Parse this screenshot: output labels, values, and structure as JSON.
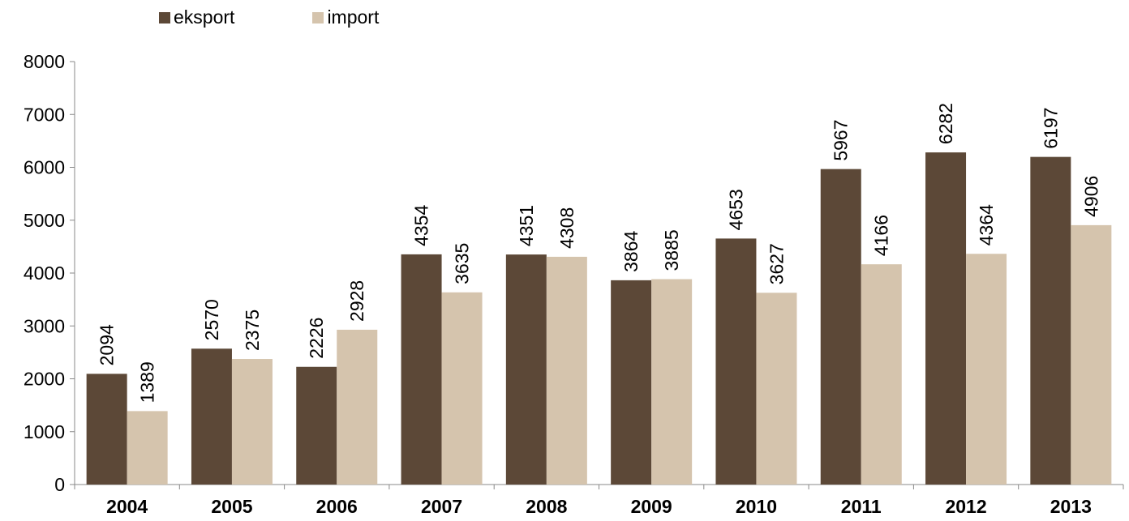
{
  "chart_data": {
    "type": "bar",
    "categories": [
      "2004",
      "2005",
      "2006",
      "2007",
      "2008",
      "2009",
      "2010",
      "2011",
      "2012",
      "2013"
    ],
    "series": [
      {
        "name": "eksport",
        "color": "#5c4837",
        "values": [
          2094,
          2570,
          2226,
          4354,
          4351,
          3864,
          4653,
          5967,
          6282,
          6197
        ]
      },
      {
        "name": "import",
        "color": "#d5c4ad",
        "values": [
          1389,
          2375,
          2928,
          3635,
          4308,
          3885,
          3627,
          4166,
          4364,
          4906
        ]
      }
    ],
    "ylim": [
      0,
      8000
    ],
    "yticks": [
      "0",
      "1000",
      "2000",
      "3000",
      "4000",
      "5000",
      "6000",
      "7000",
      "8000"
    ],
    "legend_position": "top-left",
    "grid": false
  }
}
